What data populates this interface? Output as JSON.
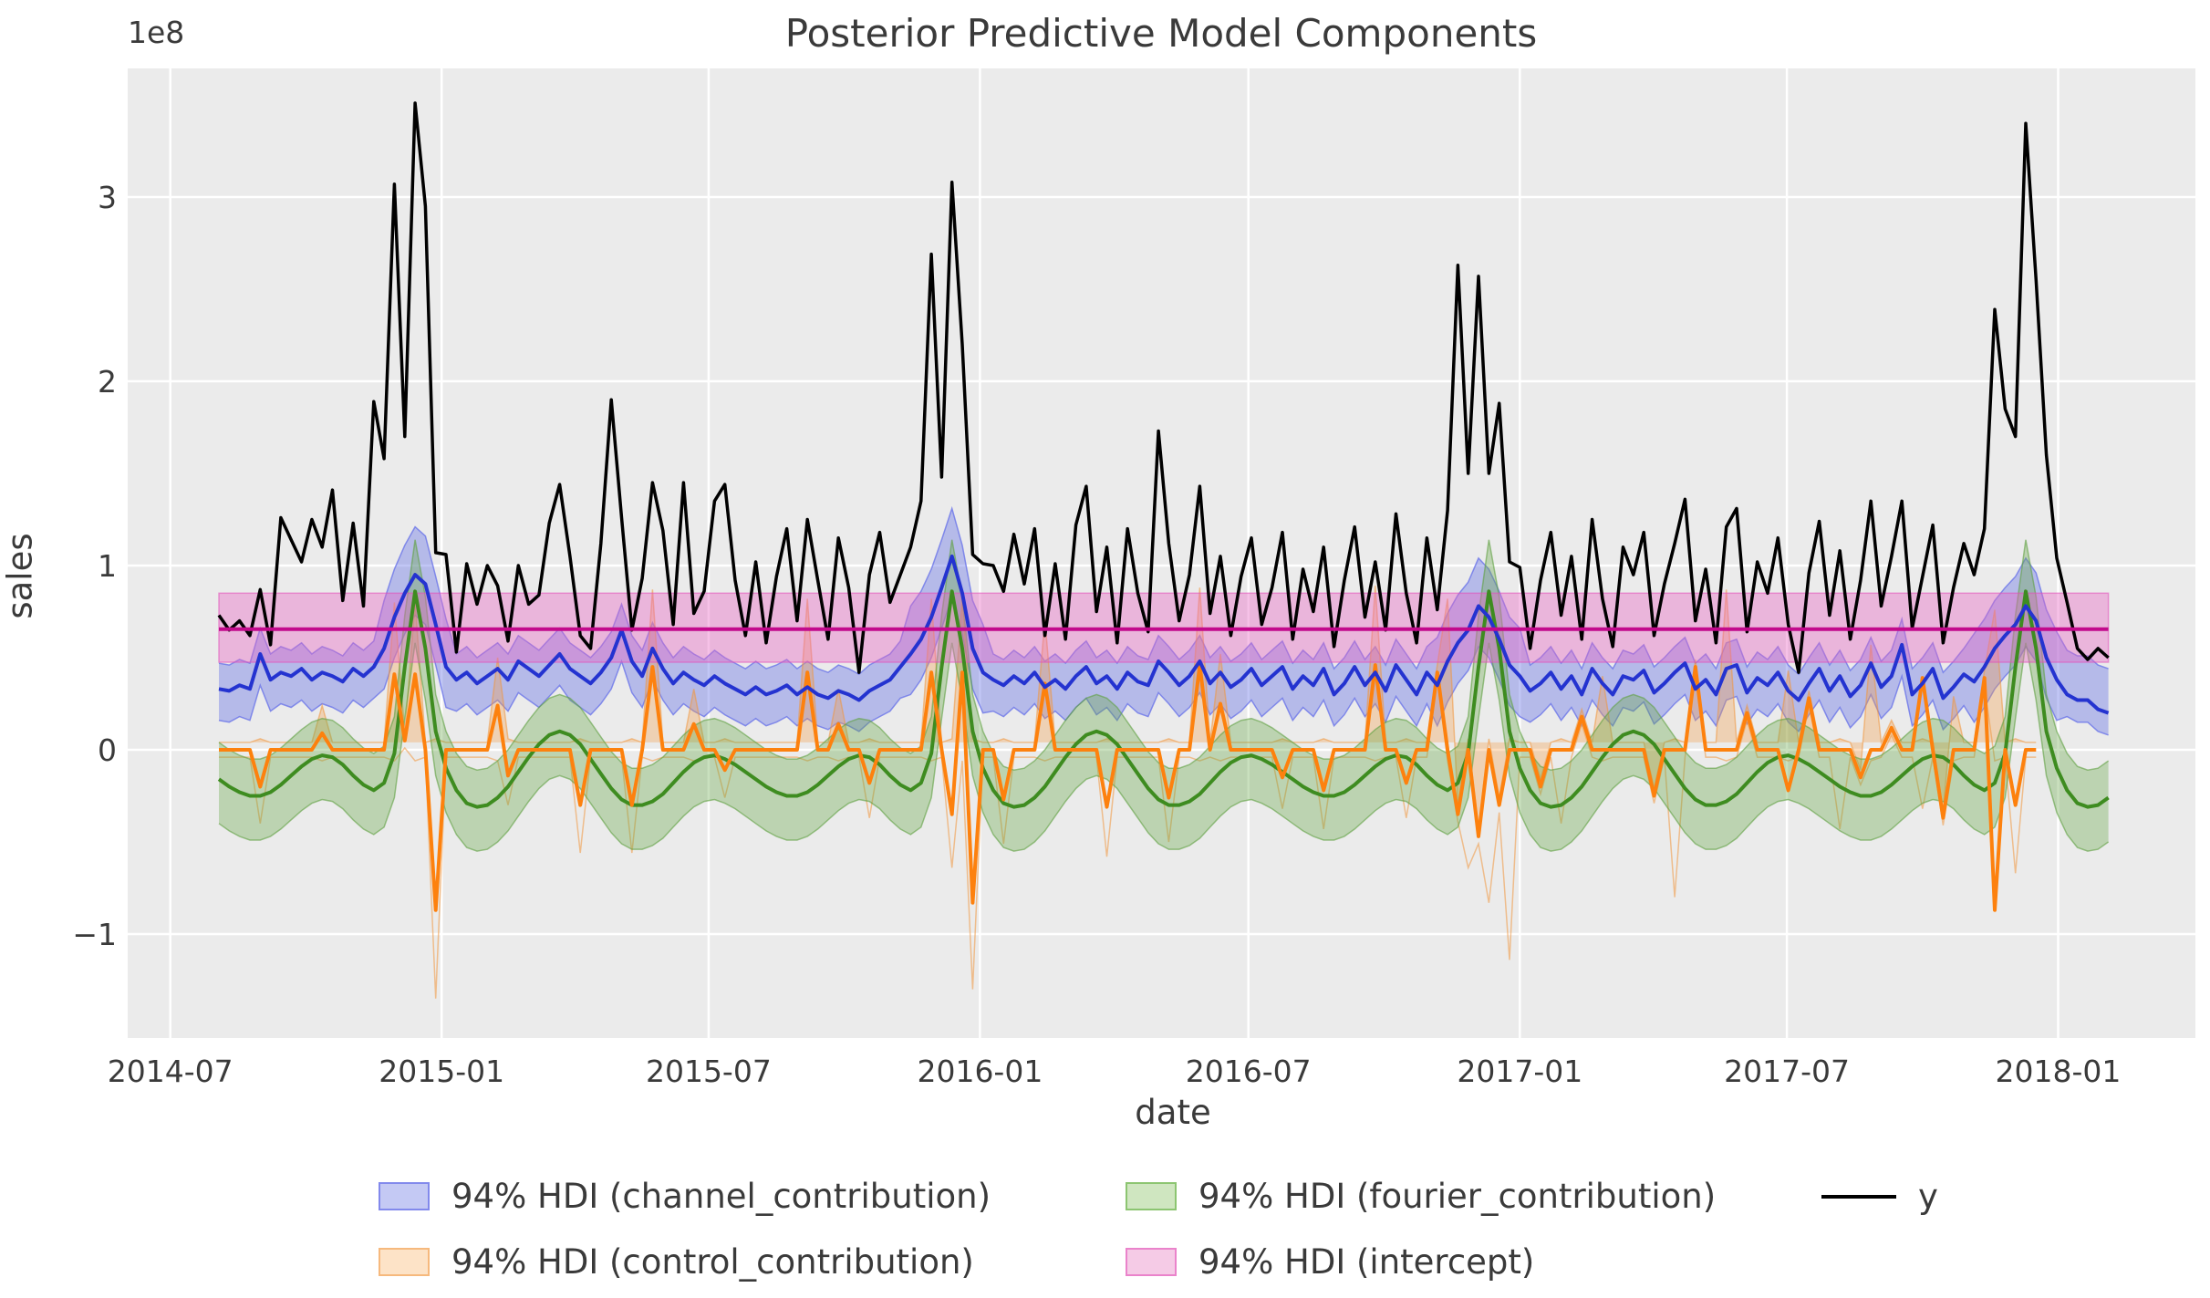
{
  "title": "Posterior Predictive Model Components",
  "axes": {
    "xlabel": "date",
    "ylabel": "sales",
    "offset_text": "1e8",
    "x_ticks": [
      {
        "label": "2014-07",
        "week": -4.71
      },
      {
        "label": "2015-01",
        "week": 21.57
      },
      {
        "label": "2015-07",
        "week": 47.43
      },
      {
        "label": "2016-01",
        "week": 73.71
      },
      {
        "label": "2016-07",
        "week": 99.71
      },
      {
        "label": "2017-01",
        "week": 126.0
      },
      {
        "label": "2017-07",
        "week": 151.86
      },
      {
        "label": "2018-01",
        "week": 178.14
      }
    ],
    "y_ticks": [
      {
        "label": "−1",
        "value": -1
      },
      {
        "label": "0",
        "value": 0
      },
      {
        "label": "1",
        "value": 1
      },
      {
        "label": "2",
        "value": 2
      },
      {
        "label": "3",
        "value": 3
      }
    ],
    "plot_bg": "#ebebeb",
    "grid_color": "#ffffff",
    "text_color": "#3a3a3a"
  },
  "legend": {
    "entries": [
      {
        "label": "94% HDI (channel_contribution)",
        "swatch_fill": "#c4c9f4",
        "swatch_edge": "#8289ec",
        "type": "patch"
      },
      {
        "label": "94% HDI (control_contribution)",
        "swatch_fill": "#fde3c7",
        "swatch_edge": "#f6b97d",
        "type": "patch"
      },
      {
        "label": "94% HDI (fourier_contribution)",
        "swatch_fill": "#cfe6c0",
        "swatch_edge": "#8cc571",
        "type": "patch"
      },
      {
        "label": "94% HDI (intercept)",
        "swatch_fill": "#f5cbe6",
        "swatch_edge": "#ea83cb",
        "type": "patch"
      },
      {
        "label": "y",
        "line_color": "#000000",
        "type": "line"
      }
    ]
  },
  "chart_data": {
    "type": "line",
    "title": "Posterior Predictive Model Components",
    "xlabel": "date",
    "ylabel": "sales",
    "unit": "1e8",
    "x_start_date": "2014-08-03",
    "x_freq_days": 7,
    "n_points": 184,
    "ylim": [
      -1.56,
      3.7
    ],
    "grid": true,
    "legend_position": "below",
    "series": [
      {
        "name": "y",
        "kind": "line",
        "color": "#000000",
        "width": 3.5,
        "values": [
          0.73,
          0.65,
          0.7,
          0.62,
          0.87,
          0.57,
          1.26,
          1.14,
          1.02,
          1.25,
          1.1,
          1.41,
          0.81,
          1.23,
          0.78,
          1.89,
          1.58,
          3.07,
          1.7,
          3.51,
          2.95,
          1.07,
          1.06,
          0.53,
          1.01,
          0.79,
          1.0,
          0.89,
          0.59,
          1.0,
          0.79,
          0.84,
          1.23,
          1.44,
          1.05,
          0.62,
          0.55,
          1.12,
          1.9,
          1.26,
          0.65,
          0.93,
          1.45,
          1.19,
          0.68,
          1.45,
          0.74,
          0.86,
          1.35,
          1.44,
          0.92,
          0.62,
          1.02,
          0.58,
          0.94,
          1.2,
          0.7,
          1.25,
          0.92,
          0.6,
          1.15,
          0.88,
          0.42,
          0.95,
          1.18,
          0.8,
          0.95,
          1.1,
          1.35,
          2.69,
          1.48,
          3.08,
          2.2,
          1.06,
          1.01,
          1.0,
          0.86,
          1.17,
          0.9,
          1.2,
          0.62,
          1.01,
          0.6,
          1.22,
          1.43,
          0.75,
          1.1,
          0.58,
          1.2,
          0.85,
          0.64,
          1.73,
          1.12,
          0.7,
          0.95,
          1.43,
          0.74,
          1.05,
          0.62,
          0.94,
          1.15,
          0.68,
          0.88,
          1.18,
          0.6,
          0.98,
          0.75,
          1.1,
          0.56,
          0.92,
          1.21,
          0.72,
          1.02,
          0.65,
          1.28,
          0.85,
          0.58,
          1.15,
          0.76,
          1.3,
          2.63,
          1.5,
          2.57,
          1.5,
          1.88,
          1.02,
          0.99,
          0.55,
          0.92,
          1.18,
          0.73,
          1.05,
          0.6,
          1.25,
          0.82,
          0.56,
          1.1,
          0.95,
          1.18,
          0.62,
          0.9,
          1.12,
          1.36,
          0.7,
          0.98,
          0.58,
          1.21,
          1.31,
          0.64,
          1.02,
          0.85,
          1.15,
          0.68,
          0.42,
          0.96,
          1.24,
          0.73,
          1.08,
          0.6,
          0.92,
          1.35,
          0.78,
          1.05,
          1.35,
          0.66,
          0.94,
          1.22,
          0.58,
          0.88,
          1.12,
          0.95,
          1.2,
          2.39,
          1.85,
          1.7,
          3.4,
          2.55,
          1.6,
          1.04,
          0.8,
          0.55,
          0.49,
          0.55,
          0.5
        ]
      },
      {
        "name": "channel_contribution",
        "kind": "line_hdi",
        "color": "#2433d0",
        "width": 4,
        "band_fill": "rgba(107,118,232,0.42)",
        "band_edge": "rgba(107,118,232,0.8)",
        "mean": [
          0.33,
          0.32,
          0.35,
          0.33,
          0.52,
          0.38,
          0.42,
          0.4,
          0.44,
          0.38,
          0.42,
          0.4,
          0.37,
          0.44,
          0.4,
          0.45,
          0.55,
          0.72,
          0.85,
          0.95,
          0.9,
          0.68,
          0.45,
          0.38,
          0.42,
          0.36,
          0.4,
          0.44,
          0.38,
          0.48,
          0.44,
          0.4,
          0.46,
          0.52,
          0.44,
          0.4,
          0.36,
          0.42,
          0.5,
          0.65,
          0.48,
          0.4,
          0.55,
          0.44,
          0.36,
          0.42,
          0.38,
          0.35,
          0.4,
          0.36,
          0.33,
          0.3,
          0.34,
          0.3,
          0.32,
          0.35,
          0.3,
          0.34,
          0.3,
          0.28,
          0.32,
          0.3,
          0.27,
          0.32,
          0.35,
          0.38,
          0.45,
          0.52,
          0.6,
          0.72,
          0.88,
          1.05,
          0.85,
          0.55,
          0.42,
          0.38,
          0.35,
          0.4,
          0.36,
          0.42,
          0.34,
          0.38,
          0.33,
          0.4,
          0.45,
          0.36,
          0.4,
          0.33,
          0.42,
          0.37,
          0.35,
          0.48,
          0.42,
          0.35,
          0.4,
          0.48,
          0.36,
          0.42,
          0.34,
          0.38,
          0.44,
          0.35,
          0.4,
          0.45,
          0.33,
          0.4,
          0.35,
          0.44,
          0.3,
          0.36,
          0.45,
          0.35,
          0.42,
          0.32,
          0.46,
          0.38,
          0.3,
          0.42,
          0.35,
          0.48,
          0.58,
          0.65,
          0.78,
          0.72,
          0.6,
          0.46,
          0.4,
          0.32,
          0.36,
          0.42,
          0.33,
          0.4,
          0.3,
          0.44,
          0.36,
          0.3,
          0.4,
          0.38,
          0.43,
          0.31,
          0.36,
          0.42,
          0.47,
          0.33,
          0.38,
          0.3,
          0.44,
          0.46,
          0.31,
          0.39,
          0.35,
          0.42,
          0.32,
          0.27,
          0.36,
          0.44,
          0.32,
          0.4,
          0.29,
          0.35,
          0.47,
          0.34,
          0.4,
          0.57,
          0.3,
          0.36,
          0.44,
          0.28,
          0.34,
          0.41,
          0.37,
          0.45,
          0.55,
          0.62,
          0.68,
          0.78,
          0.7,
          0.5,
          0.38,
          0.3,
          0.27,
          0.27,
          0.22,
          0.2
        ],
        "hdi": {
          "low_offset": 0.17,
          "high_offset": 0.14,
          "windows": [
            {
              "from": 16,
              "to": 22,
              "low": 0.22,
              "high": 0.26
            },
            {
              "from": 67,
              "to": 74,
              "low": 0.22,
              "high": 0.26
            },
            {
              "from": 118,
              "to": 126,
              "low": 0.22,
              "high": 0.26
            },
            {
              "from": 170,
              "to": 178,
              "low": 0.22,
              "high": 0.26
            },
            {
              "from": 179,
              "to": 183,
              "low": 0.12,
              "high": 0.24
            }
          ]
        }
      },
      {
        "name": "control_contribution",
        "kind": "line_hdi",
        "color": "#fd810e",
        "width": 4,
        "band_fill": "rgba(246,157,70,0.33)",
        "band_edge": "rgba(240,150,60,0.55)",
        "mean": [
          0,
          0,
          0,
          0,
          -0.2,
          0,
          0,
          0,
          0,
          0,
          0.09,
          0,
          0,
          0,
          0,
          0,
          0,
          0.41,
          0.05,
          0.41,
          0,
          -0.87,
          0,
          0,
          0,
          0,
          0,
          0.24,
          -0.14,
          0,
          0,
          0,
          0,
          0,
          0,
          -0.3,
          0,
          0,
          0,
          0,
          -0.3,
          0,
          0.45,
          0,
          0,
          0,
          0.14,
          0,
          0,
          -0.11,
          0,
          0,
          0,
          0,
          0,
          0,
          0,
          0.42,
          0,
          0,
          0.14,
          0,
          0,
          -0.18,
          0,
          0,
          0,
          0,
          0,
          0.42,
          0,
          -0.35,
          0.42,
          -0.83,
          0,
          0,
          -0.27,
          0,
          0,
          0,
          0.36,
          0,
          0,
          0,
          0,
          0,
          -0.31,
          0,
          0,
          0,
          0,
          0,
          -0.26,
          0,
          0,
          0.46,
          0,
          0.25,
          0,
          0,
          0,
          0,
          0,
          -0.15,
          0,
          0,
          0,
          -0.22,
          0,
          0,
          0,
          0,
          0.46,
          0,
          0,
          -0.18,
          0,
          0,
          0.42,
          0,
          -0.35,
          0,
          -0.47,
          0,
          -0.3,
          0,
          0,
          0,
          -0.2,
          0,
          0,
          0,
          0.18,
          0,
          0,
          0,
          0,
          0,
          0,
          -0.25,
          0,
          0,
          0,
          0.45,
          0,
          0,
          0,
          0,
          0.2,
          0,
          0,
          0,
          -0.22,
          0,
          0.28,
          0,
          0,
          0,
          0,
          -0.15,
          0,
          0,
          0.12,
          0,
          0,
          0.39,
          0,
          -0.37,
          0,
          0,
          0,
          0.39,
          -0.87,
          0,
          -0.3,
          0,
          0
        ],
        "hdi": {
          "default_low": -0.04,
          "default_high": 0.04,
          "events": {
            "4": [
              -0.4,
              0.06
            ],
            "10": [
              -0.06,
              0.24
            ],
            "17": [
              -0.06,
              0.8
            ],
            "19": [
              -0.06,
              0.8
            ],
            "21": [
              -1.35,
              0.06
            ],
            "27": [
              -0.06,
              0.5
            ],
            "28": [
              -0.3,
              0.06
            ],
            "35": [
              -0.56,
              0.06
            ],
            "40": [
              -0.56,
              0.06
            ],
            "42": [
              -0.06,
              0.87
            ],
            "46": [
              -0.06,
              0.33
            ],
            "49": [
              -0.26,
              0.06
            ],
            "57": [
              -0.06,
              0.82
            ],
            "60": [
              -0.06,
              0.33
            ],
            "63": [
              -0.37,
              0.06
            ],
            "69": [
              -0.06,
              0.82
            ],
            "71": [
              -0.64,
              0.06
            ],
            "72": [
              -0.06,
              0.82
            ],
            "73": [
              -1.3,
              0.06
            ],
            "76": [
              -0.51,
              0.06
            ],
            "80": [
              -0.06,
              0.71
            ],
            "86": [
              -0.58,
              0.06
            ],
            "92": [
              -0.5,
              0.06
            ],
            "95": [
              -0.06,
              0.88
            ],
            "97": [
              -0.06,
              0.52
            ],
            "103": [
              -0.32,
              0.06
            ],
            "107": [
              -0.43,
              0.06
            ],
            "112": [
              -0.06,
              0.89
            ],
            "115": [
              -0.37,
              0.06
            ],
            "119": [
              -0.06,
              0.82
            ],
            "121": [
              -0.64,
              0.06
            ],
            "123": [
              -0.83,
              0.06
            ],
            "125": [
              -1.14,
              0.06
            ],
            "130": [
              -0.4,
              0.06
            ],
            "134": [
              -0.06,
              0.4
            ],
            "141": [
              -0.8,
              0.06
            ],
            "146": [
              -0.06,
              0.87
            ],
            "152": [
              -0.06,
              0.43
            ],
            "157": [
              -0.43,
              0.06
            ],
            "160": [
              -0.06,
              0.57
            ],
            "165": [
              -0.32,
              0.06
            ],
            "168": [
              -0.06,
              0.29
            ],
            "172": [
              -0.06,
              0.76
            ],
            "174": [
              -0.67,
              0.06
            ],
            "178": [
              -0.06,
              0.76
            ],
            "179": [
              -1.39,
              0.06
            ],
            "181": [
              -0.56,
              0.06
            ]
          }
        }
      },
      {
        "name": "fourier_contribution",
        "kind": "line_hdi",
        "color": "#3e8c20",
        "width": 4,
        "band_fill": "rgba(100,165,70,0.35)",
        "band_edge": "rgba(95,160,65,0.6)",
        "mean": [
          -0.16,
          -0.2,
          -0.23,
          -0.25,
          -0.25,
          -0.23,
          -0.19,
          -0.14,
          -0.09,
          -0.05,
          -0.03,
          -0.04,
          -0.08,
          -0.14,
          -0.19,
          -0.22,
          -0.18,
          -0.02,
          0.45,
          0.86,
          0.55,
          0.1,
          -0.1,
          -0.22,
          -0.29,
          -0.31,
          -0.3,
          -0.26,
          -0.2,
          -0.12,
          -0.04,
          0.03,
          0.08,
          0.1,
          0.08,
          0.03,
          -0.05,
          -0.13,
          -0.21,
          -0.27,
          -0.3,
          -0.3,
          -0.28,
          -0.24,
          -0.18,
          -0.12,
          -0.07,
          -0.04,
          -0.03,
          -0.05,
          -0.08,
          -0.12,
          -0.16,
          -0.2,
          -0.23,
          -0.25,
          -0.25,
          -0.23,
          -0.19,
          -0.14,
          -0.09,
          -0.05,
          -0.03,
          -0.04,
          -0.08,
          -0.14,
          -0.19,
          -0.22,
          -0.18,
          -0.02,
          0.45,
          0.86,
          0.55,
          0.1,
          -0.1,
          -0.22,
          -0.29,
          -0.31,
          -0.3,
          -0.26,
          -0.2,
          -0.12,
          -0.04,
          0.03,
          0.08,
          0.1,
          0.08,
          0.03,
          -0.05,
          -0.13,
          -0.21,
          -0.27,
          -0.3,
          -0.3,
          -0.28,
          -0.24,
          -0.18,
          -0.12,
          -0.07,
          -0.04,
          -0.03,
          -0.05,
          -0.08,
          -0.12,
          -0.16,
          -0.2,
          -0.23,
          -0.25,
          -0.25,
          -0.23,
          -0.19,
          -0.14,
          -0.09,
          -0.05,
          -0.03,
          -0.04,
          -0.08,
          -0.14,
          -0.19,
          -0.22,
          -0.18,
          -0.02,
          0.45,
          0.86,
          0.55,
          0.1,
          -0.1,
          -0.22,
          -0.29,
          -0.31,
          -0.3,
          -0.26,
          -0.2,
          -0.12,
          -0.04,
          0.03,
          0.08,
          0.1,
          0.08,
          0.03,
          -0.05,
          -0.13,
          -0.21,
          -0.27,
          -0.3,
          -0.3,
          -0.28,
          -0.24,
          -0.18,
          -0.12,
          -0.07,
          -0.04,
          -0.03,
          -0.05,
          -0.08,
          -0.12,
          -0.16,
          -0.2,
          -0.23,
          -0.25,
          -0.25,
          -0.23,
          -0.19,
          -0.14,
          -0.09,
          -0.05,
          -0.03,
          -0.04,
          -0.08,
          -0.14,
          -0.19,
          -0.22,
          -0.18,
          -0.02,
          0.45,
          0.86,
          0.55,
          0.1,
          -0.1,
          -0.22,
          -0.29,
          -0.31,
          -0.3,
          -0.26
        ],
        "hdi": {
          "low_offset": 0.24,
          "high_offset": 0.2,
          "peak_threshold": 0.4,
          "peak_low": 0.28,
          "peak_high": 0.28
        }
      },
      {
        "name": "intercept",
        "kind": "constant_hdi",
        "color": "#c20a8c",
        "width": 4,
        "band_fill": "rgba(232,100,195,0.4)",
        "band_edge": "rgba(225,80,185,0.55)",
        "mean_constant": 0.655,
        "hdi_constant": [
          0.475,
          0.85
        ]
      }
    ]
  }
}
